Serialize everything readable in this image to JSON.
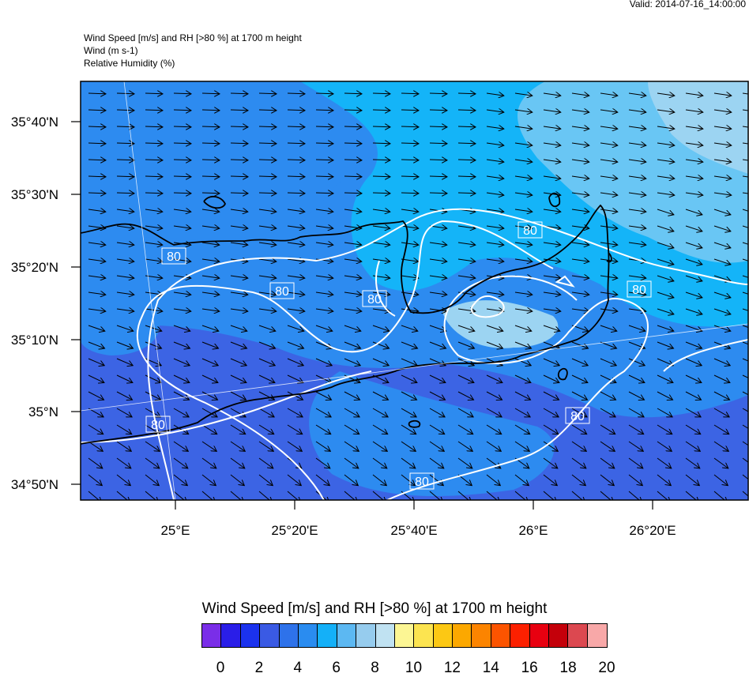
{
  "header": {
    "valid": "Valid: 2014-07-16_14:00:00",
    "title": "Wind Speed [m/s] and RH [>80 %] at 1700 m height",
    "wind": "Wind   (m s-1)",
    "rh": "Relative Humidity   (%)"
  },
  "map": {
    "lat_labels": [
      "35°40'N",
      "35°30'N",
      "35°20'N",
      "35°10'N",
      "35°N",
      "34°50'N"
    ],
    "lon_labels": [
      "25°E",
      "25°20'E",
      "25°40'E",
      "26°E",
      "26°20'E"
    ],
    "contour_label": "80",
    "colors": {
      "deep": "#3c64e4",
      "mid": "#2d8bf0",
      "light": "#14b4f8",
      "pale": "#69c6f4",
      "palest": "#9cd4f2",
      "coast": "#000000",
      "contour": "#ffffff",
      "arrow": "#000000"
    }
  },
  "colorbar": {
    "title": "Wind Speed [m/s] and RH [>80 %] at 1700 m height",
    "colors": [
      "#7a2ee8",
      "#2a1ee8",
      "#1b32ee",
      "#3a5ae4",
      "#2e72ea",
      "#2a8cf0",
      "#14b0f8",
      "#5cb8f2",
      "#96ccee",
      "#c0e2f2",
      "#fcf694",
      "#fce450",
      "#fcc814",
      "#fca800",
      "#fc8400",
      "#fc5400",
      "#fc2000",
      "#e80010",
      "#c4000a",
      "#dc4850",
      "#f8a8a8"
    ],
    "labels": [
      "0",
      "2",
      "4",
      "6",
      "8",
      "10",
      "12",
      "14",
      "16",
      "18",
      "20"
    ]
  }
}
